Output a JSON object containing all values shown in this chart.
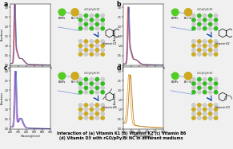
{
  "title_line1": "Interaction of (a) Vitamin K1 (b) Vitamin K2 (c) Vitamin B6",
  "title_line2": "(d) Vitamin D3 with rGO/pPy/Bi NC in different mediums",
  "panel_labels": [
    "a",
    "b",
    "c",
    "d"
  ],
  "background": "#f0f0f0",
  "spectra_colors": {
    "a": [
      "#e8607a",
      "#b02020",
      "#4466bb"
    ],
    "b": [
      "#e8607a",
      "#b02020",
      "#4466bb"
    ],
    "c": [
      "#c060cc",
      "#8040aa",
      "#4466bb"
    ],
    "d": [
      "#e8a020",
      "#b07010"
    ]
  },
  "green_ball_color": "#55cc22",
  "gold_ball_color": "#ccaa22",
  "arrow_color": "#1144aa",
  "grid_green": "#33bb22",
  "grid_gold": "#ccaa22",
  "grid_gray": "#aaaaaa",
  "vitamin_labels": [
    "Vitamin K1",
    "Vitamin K2",
    "Vitamin B6",
    "Vitamin D3"
  ],
  "nanocomposite_label": "rGO/pPy/Bi NC"
}
